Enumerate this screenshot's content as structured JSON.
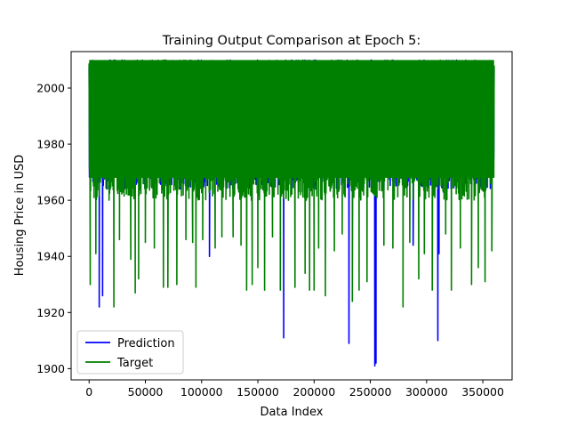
{
  "chart_data": {
    "type": "line",
    "title": "Training Output Comparison at Epoch 5:",
    "xlabel": "Data Index",
    "ylabel": "Housing Price in USD",
    "xlim": [
      -16000,
      376000
    ],
    "ylim": [
      1896,
      2013
    ],
    "x_ticks": [
      0,
      50000,
      100000,
      150000,
      200000,
      250000,
      300000,
      350000
    ],
    "x_tick_labels": [
      "0",
      "50000",
      "100000",
      "150000",
      "200000",
      "250000",
      "300000",
      "350000"
    ],
    "y_ticks": [
      1900,
      1920,
      1940,
      1960,
      1980,
      2000
    ],
    "y_tick_labels": [
      "1900",
      "1920",
      "1940",
      "1960",
      "1980",
      "2000"
    ],
    "grid": false,
    "legend": "lower-left",
    "x_range": [
      0,
      360000
    ],
    "band": {
      "series": "Target",
      "low": 1960,
      "high": 2010
    },
    "series": [
      {
        "name": "Prediction",
        "color": "#0000ff",
        "dips": [
          {
            "x": 9000,
            "y": 1922
          },
          {
            "x": 12000,
            "y": 1926
          },
          {
            "x": 107000,
            "y": 1940
          },
          {
            "x": 173000,
            "y": 1911
          },
          {
            "x": 231000,
            "y": 1909
          },
          {
            "x": 254000,
            "y": 1901
          },
          {
            "x": 255000,
            "y": 1902
          },
          {
            "x": 288000,
            "y": 1944
          },
          {
            "x": 310000,
            "y": 1910
          },
          {
            "x": 311000,
            "y": 1941
          }
        ]
      },
      {
        "name": "Target",
        "color": "#008000",
        "dips": [
          {
            "x": 1000,
            "y": 1930
          },
          {
            "x": 6000,
            "y": 1941
          },
          {
            "x": 22000,
            "y": 1922
          },
          {
            "x": 27000,
            "y": 1946
          },
          {
            "x": 37000,
            "y": 1939
          },
          {
            "x": 41000,
            "y": 1927
          },
          {
            "x": 44000,
            "y": 1932
          },
          {
            "x": 50000,
            "y": 1945
          },
          {
            "x": 58000,
            "y": 1943
          },
          {
            "x": 66000,
            "y": 1929
          },
          {
            "x": 70000,
            "y": 1929
          },
          {
            "x": 78000,
            "y": 1930
          },
          {
            "x": 86000,
            "y": 1946
          },
          {
            "x": 92000,
            "y": 1945
          },
          {
            "x": 95000,
            "y": 1929
          },
          {
            "x": 101000,
            "y": 1946
          },
          {
            "x": 112000,
            "y": 1943
          },
          {
            "x": 118000,
            "y": 1947
          },
          {
            "x": 128000,
            "y": 1947
          },
          {
            "x": 135000,
            "y": 1944
          },
          {
            "x": 140000,
            "y": 1928
          },
          {
            "x": 145000,
            "y": 1930
          },
          {
            "x": 150000,
            "y": 1936
          },
          {
            "x": 156000,
            "y": 1928
          },
          {
            "x": 163000,
            "y": 1947
          },
          {
            "x": 170000,
            "y": 1928
          },
          {
            "x": 183000,
            "y": 1929
          },
          {
            "x": 192000,
            "y": 1934
          },
          {
            "x": 196000,
            "y": 1928
          },
          {
            "x": 200000,
            "y": 1928
          },
          {
            "x": 204000,
            "y": 1943
          },
          {
            "x": 210000,
            "y": 1926
          },
          {
            "x": 218000,
            "y": 1942
          },
          {
            "x": 225000,
            "y": 1948
          },
          {
            "x": 234000,
            "y": 1924
          },
          {
            "x": 240000,
            "y": 1928
          },
          {
            "x": 247000,
            "y": 1931
          },
          {
            "x": 262000,
            "y": 1944
          },
          {
            "x": 270000,
            "y": 1943
          },
          {
            "x": 279000,
            "y": 1922
          },
          {
            "x": 285000,
            "y": 1945
          },
          {
            "x": 293000,
            "y": 1932
          },
          {
            "x": 298000,
            "y": 1941
          },
          {
            "x": 305000,
            "y": 1928
          },
          {
            "x": 317000,
            "y": 1948
          },
          {
            "x": 322000,
            "y": 1928
          },
          {
            "x": 330000,
            "y": 1943
          },
          {
            "x": 340000,
            "y": 1930
          },
          {
            "x": 346000,
            "y": 1936
          },
          {
            "x": 352000,
            "y": 1931
          },
          {
            "x": 358000,
            "y": 1942
          }
        ]
      }
    ]
  }
}
